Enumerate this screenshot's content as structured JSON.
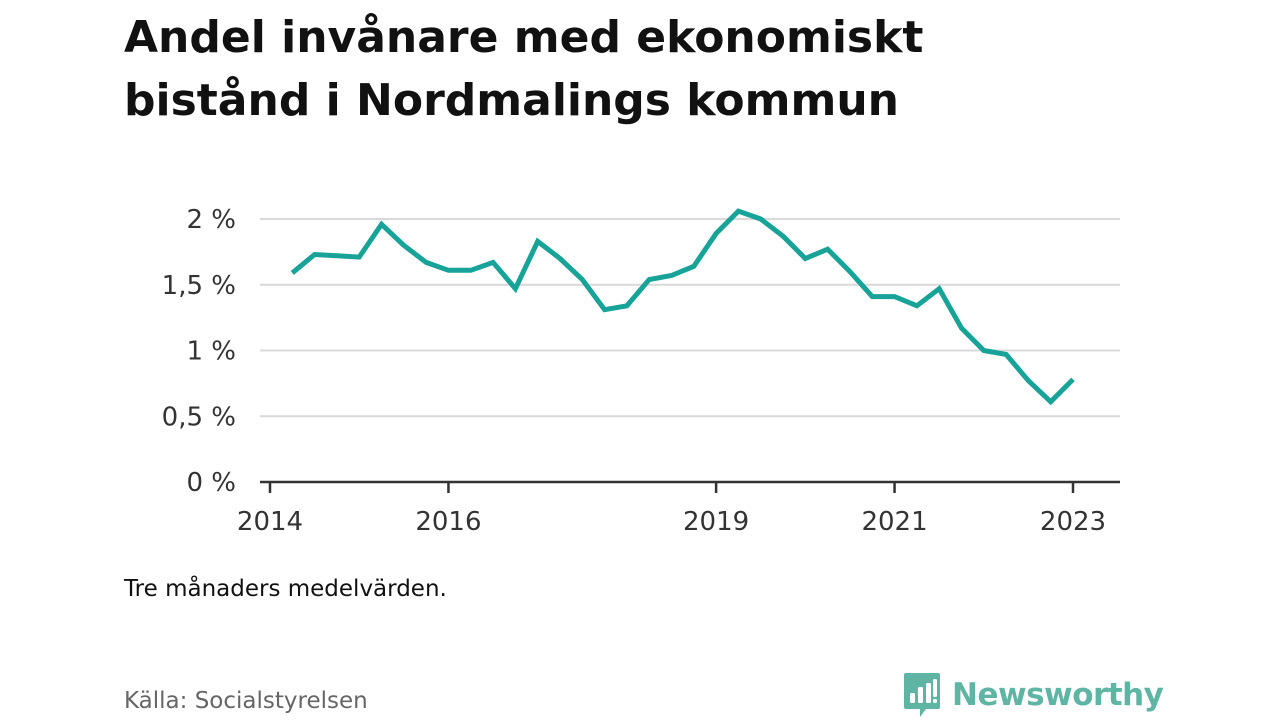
{
  "title_line1": "Andel invånare med ekonomiskt",
  "title_line2": "bistånd i Nordmalings kommun",
  "note": "Tre månaders medelvärden.",
  "source": "Källa: Socialstyrelsen",
  "brand": {
    "name": "Newsworthy",
    "logo_icon": "bar-chart-speech-bubble-icon",
    "color": "#5fb5a3"
  },
  "colors": {
    "line": "#17a398",
    "grid": "#d9d9d9",
    "axis": "#333333",
    "text": "#111111"
  },
  "chart_data": {
    "type": "line",
    "title": "Andel invånare med ekonomiskt bistånd i Nordmalings kommun",
    "xlabel": "",
    "ylabel": "",
    "ylim": [
      0,
      2
    ],
    "yticks": [
      0,
      0.5,
      1,
      1.5,
      2
    ],
    "ytick_labels": [
      "0 %",
      "0,5 %",
      "1 %",
      "1,5 %",
      "2 %"
    ],
    "xlim": [
      2014,
      2023.25
    ],
    "xticks": [
      2014,
      2016,
      2019,
      2021,
      2023
    ],
    "xtick_labels": [
      "2014",
      "2016",
      "2019",
      "2021",
      "2023"
    ],
    "grid": true,
    "series": [
      {
        "name": "",
        "x": [
          2014.25,
          2014.5,
          2014.75,
          2015.0,
          2015.25,
          2015.5,
          2015.75,
          2016.0,
          2016.25,
          2016.5,
          2016.75,
          2017.0,
          2017.25,
          2017.5,
          2017.75,
          2018.0,
          2018.25,
          2018.5,
          2018.75,
          2019.0,
          2019.25,
          2019.5,
          2019.75,
          2020.0,
          2020.25,
          2020.5,
          2020.75,
          2021.0,
          2021.25,
          2021.5,
          2021.75,
          2022.0,
          2022.25,
          2022.5,
          2022.75,
          2023.0
        ],
        "values": [
          1.59,
          1.73,
          1.72,
          1.71,
          1.96,
          1.8,
          1.67,
          1.61,
          1.61,
          1.67,
          1.47,
          1.83,
          1.7,
          1.54,
          1.31,
          1.34,
          1.54,
          1.57,
          1.64,
          1.89,
          2.06,
          2.0,
          1.87,
          1.7,
          1.77,
          1.6,
          1.41,
          1.41,
          1.34,
          1.47,
          1.17,
          1.0,
          0.97,
          0.77,
          0.61,
          0.78
        ]
      }
    ]
  }
}
